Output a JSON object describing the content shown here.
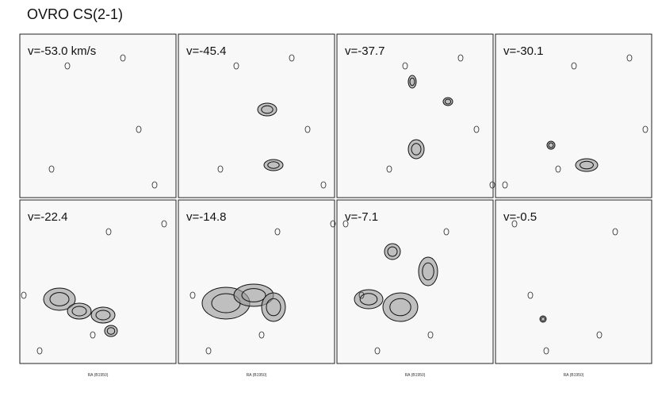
{
  "title": "OVRO CS(2-1)",
  "x_axis_label": "RA (B1950)",
  "panels": [
    {
      "label": "v=-53.0 km/s"
    },
    {
      "label": "v=-45.4"
    },
    {
      "label": "v=-37.7"
    },
    {
      "label": "v=-30.1"
    },
    {
      "label": "v=-22.4"
    },
    {
      "label": "v=-14.8"
    },
    {
      "label": "v=-7.1"
    },
    {
      "label": "v=-0.5"
    }
  ]
}
